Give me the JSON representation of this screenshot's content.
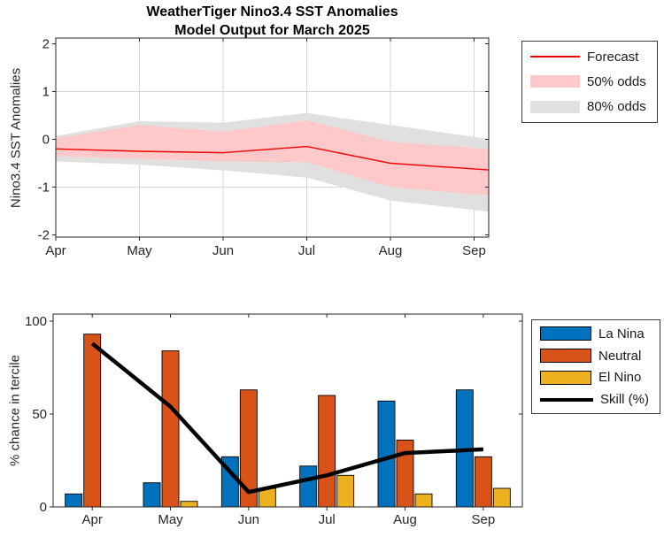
{
  "title": {
    "line1": "WeatherTiger Nino3.4 SST Anomalies",
    "line2": "Model Output for March 2025"
  },
  "colors": {
    "forecast": "#f00000",
    "band50": "#ffc9c9",
    "band80": "#e0e0e0",
    "la_nina": "#0072bd",
    "neutral": "#d95319",
    "el_nino": "#edb120",
    "skill": "#000000",
    "axis": "#262626",
    "grid": "#d6d6d6"
  },
  "chart_data": [
    {
      "type": "line",
      "title": "WeatherTiger Nino3.4 SST Anomalies Model Output for March 2025",
      "ylabel": "Nino3.4 SST Anomalies",
      "x": [
        "Apr",
        "May",
        "Jun",
        "Jul",
        "Aug",
        "Sep"
      ],
      "ylim": [
        -2,
        2
      ],
      "yticks": [
        2,
        1,
        0,
        -1,
        -2
      ],
      "grid": true,
      "legend_position": "outside-top-right",
      "series": [
        {
          "name": "Forecast",
          "kind": "line",
          "color": "#f00000",
          "values": [
            -0.2,
            -0.25,
            -0.28,
            -0.15,
            -0.5,
            -0.62
          ]
        },
        {
          "name": "50% odds",
          "kind": "band",
          "color": "#ffc9c9",
          "upper": [
            0.02,
            0.3,
            0.16,
            0.4,
            -0.05,
            -0.18
          ],
          "lower": [
            -0.35,
            -0.41,
            -0.46,
            -0.48,
            -1.0,
            -1.15
          ]
        },
        {
          "name": "80% odds",
          "kind": "band",
          "color": "#e0e0e0",
          "upper": [
            0.07,
            0.38,
            0.35,
            0.55,
            0.3,
            0.05
          ],
          "lower": [
            -0.46,
            -0.53,
            -0.65,
            -0.8,
            -1.28,
            -1.48
          ]
        }
      ]
    },
    {
      "type": "bar",
      "ylabel": "% chance in tercile",
      "categories": [
        "Apr",
        "May",
        "Jun",
        "Jul",
        "Aug",
        "Sep"
      ],
      "ylim": [
        0,
        100
      ],
      "yticks": [
        0,
        50,
        100
      ],
      "grid": false,
      "legend_position": "outside-top-right",
      "series": [
        {
          "name": "La Nina",
          "kind": "bar",
          "color": "#0072bd",
          "values": [
            7,
            13,
            27,
            22,
            57,
            63
          ]
        },
        {
          "name": "Neutral",
          "kind": "bar",
          "color": "#d95319",
          "values": [
            93,
            84,
            63,
            60,
            36,
            27
          ]
        },
        {
          "name": "El Nino",
          "kind": "bar",
          "color": "#edb120",
          "values": [
            0,
            3,
            10,
            17,
            7,
            10
          ]
        },
        {
          "name": "Skill (%)",
          "kind": "line",
          "color": "#000000",
          "values": [
            88,
            54,
            8,
            17,
            29,
            31
          ]
        }
      ]
    }
  ]
}
